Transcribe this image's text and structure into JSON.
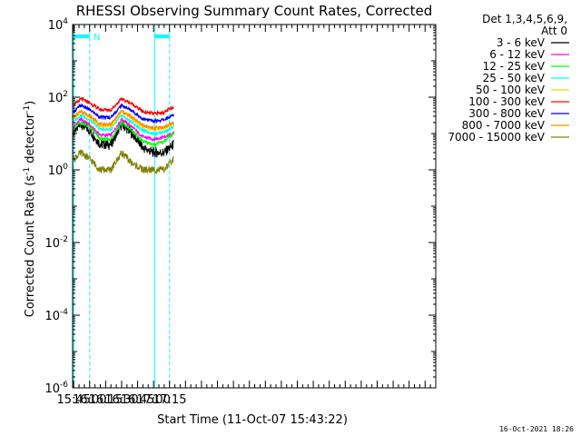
{
  "chart_data": {
    "type": "line",
    "title": "RHESSI Observing Summary Count Rates, Corrected",
    "xlabel": "Start Time (11-Oct-07 15:43:22)",
    "ylabel_main": "Corrected Count Rate (s",
    "ylabel_sup1": "-1",
    "ylabel_mid": " detector",
    "ylabel_sup2": "-1",
    "ylabel_end": ")",
    "yscale": "log",
    "x_range_min": [
      944,
      1285
    ],
    "ylim": [
      1e-06,
      10000
    ],
    "x_ticks": [
      {
        "label": "15:45",
        "min": 945
      },
      {
        "label": "16:00",
        "min": 960
      },
      {
        "label": "16:15",
        "min": 975
      },
      {
        "label": "16:30",
        "min": 990
      },
      {
        "label": "16:45",
        "min": 1005
      },
      {
        "label": "17:00",
        "min": 1020
      },
      {
        "label": "17:15",
        "min": 1035
      }
    ],
    "y_ticks": [
      {
        "base": "10",
        "exp": "4",
        "value": 10000
      },
      {
        "base": "10",
        "exp": "2",
        "value": 100
      },
      {
        "base": "10",
        "exp": "0",
        "value": 1
      },
      {
        "base": "10",
        "exp": "-2",
        "value": 0.01
      },
      {
        "base": "10",
        "exp": "-4",
        "value": 0.0001
      },
      {
        "base": "10",
        "exp": "-6",
        "value": 1e-06
      }
    ],
    "legend_header": [
      "Det 1,3,4,5,6,9,",
      "Att 0"
    ],
    "legend_position": "right",
    "series": [
      {
        "name": "3 - 6 keV",
        "color": "#000000",
        "x": [
          945,
          952,
          960,
          970,
          980,
          990,
          1000,
          1010,
          1020,
          1030,
          1039
        ],
        "values": [
          12,
          18,
          12,
          5,
          5,
          18,
          10,
          4,
          3,
          3,
          5
        ]
      },
      {
        "name": "6 - 12 keV",
        "color": "#ff00ff",
        "x": [
          945,
          952,
          960,
          970,
          980,
          990,
          1000,
          1010,
          1020,
          1030,
          1039
        ],
        "values": [
          16,
          25,
          17,
          9,
          9,
          25,
          15,
          8,
          7,
          8,
          10
        ]
      },
      {
        "name": "12 - 25 keV",
        "color": "#00ff00",
        "x": [
          945,
          952,
          960,
          970,
          980,
          990,
          1000,
          1010,
          1020,
          1030,
          1039
        ],
        "values": [
          14,
          20,
          15,
          7,
          7,
          20,
          12,
          6,
          5,
          6,
          10
        ]
      },
      {
        "name": "25 - 50 keV",
        "color": "#00ffff",
        "x": [
          945,
          952,
          960,
          970,
          980,
          990,
          1000,
          1010,
          1020,
          1030,
          1039
        ],
        "values": [
          22,
          32,
          24,
          13,
          13,
          32,
          20,
          12,
          10,
          11,
          15
        ]
      },
      {
        "name": "50 - 100 keV",
        "color": "#ffd700",
        "x": [
          945,
          952,
          960,
          970,
          980,
          990,
          1000,
          1010,
          1020,
          1030,
          1039
        ],
        "values": [
          26,
          40,
          29,
          16,
          16,
          40,
          25,
          15,
          13,
          14,
          18
        ]
      },
      {
        "name": "100 - 300 keV",
        "color": "#ff0000",
        "x": [
          945,
          952,
          960,
          970,
          980,
          990,
          1000,
          1010,
          1020,
          1030,
          1039
        ],
        "values": [
          60,
          90,
          70,
          45,
          45,
          90,
          65,
          40,
          35,
          38,
          55
        ]
      },
      {
        "name": "300 - 800 keV",
        "color": "#0000ff",
        "x": [
          945,
          952,
          960,
          970,
          980,
          990,
          1000,
          1010,
          1020,
          1030,
          1039
        ],
        "values": [
          40,
          60,
          45,
          28,
          28,
          60,
          42,
          25,
          22,
          24,
          32
        ]
      },
      {
        "name": "800 - 7000 keV",
        "color": "#ff8c00",
        "x": [
          945,
          952,
          960,
          970,
          980,
          990,
          1000,
          1010,
          1020,
          1030,
          1039
        ],
        "values": [
          28,
          42,
          31,
          18,
          18,
          42,
          28,
          17,
          14,
          15,
          20
        ]
      },
      {
        "name": "7000 - 15000 keV",
        "color": "#808000",
        "x": [
          945,
          952,
          960,
          970,
          980,
          990,
          1000,
          1010,
          1020,
          1030,
          1039
        ],
        "values": [
          2,
          3,
          2,
          1,
          1,
          3,
          1.5,
          1,
          1,
          1,
          2
        ]
      }
    ],
    "annotations": {
      "segment_label": "N",
      "bar_color": "#00ffff",
      "bars": [
        {
          "from": 945,
          "to": 960
        },
        {
          "from": 1021,
          "to": 1035
        }
      ],
      "vlines_dashed": [
        960,
        1035
      ],
      "vlines_solid": [
        945,
        1021
      ]
    },
    "footer_date": "16-Oct-2021 18:26"
  }
}
